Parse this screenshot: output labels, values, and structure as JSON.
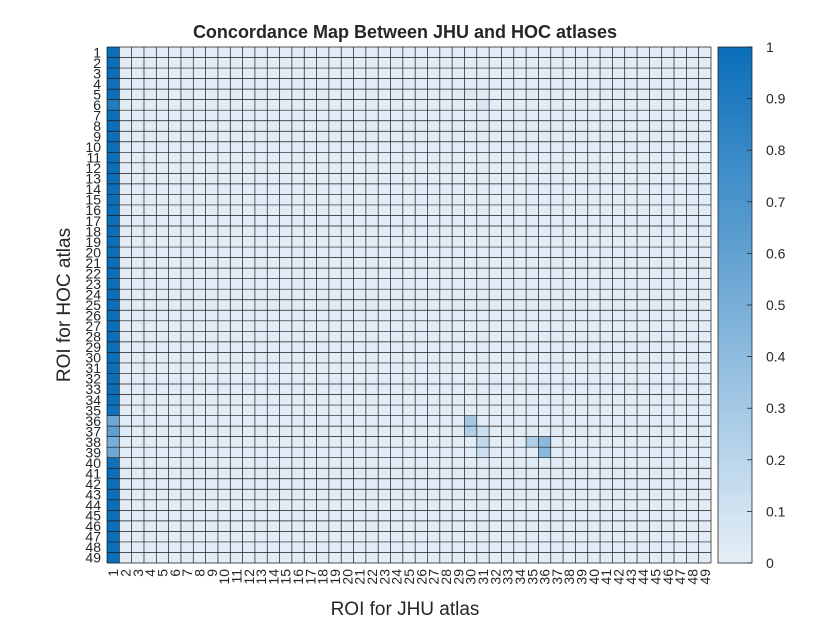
{
  "chart_data": {
    "type": "heatmap",
    "title": "Concordance Map Between JHU and HOC atlases",
    "xlabel": "ROI for JHU atlas",
    "ylabel": "ROI for HOC atlas",
    "x_categories": [
      "1",
      "2",
      "3",
      "4",
      "5",
      "6",
      "7",
      "8",
      "9",
      "10",
      "11",
      "12",
      "13",
      "14",
      "15",
      "16",
      "17",
      "18",
      "19",
      "20",
      "21",
      "22",
      "23",
      "24",
      "25",
      "26",
      "27",
      "28",
      "29",
      "30",
      "31",
      "32",
      "33",
      "34",
      "35",
      "36",
      "37",
      "38",
      "39",
      "40",
      "41",
      "42",
      "43",
      "44",
      "45",
      "46",
      "47",
      "48",
      "49"
    ],
    "y_categories": [
      "1",
      "2",
      "3",
      "4",
      "5",
      "6",
      "7",
      "8",
      "9",
      "10",
      "11",
      "12",
      "13",
      "14",
      "15",
      "16",
      "17",
      "18",
      "19",
      "20",
      "21",
      "22",
      "23",
      "24",
      "25",
      "26",
      "27",
      "28",
      "29",
      "30",
      "31",
      "32",
      "33",
      "34",
      "35",
      "36",
      "37",
      "38",
      "39",
      "40",
      "41",
      "42",
      "43",
      "44",
      "45",
      "46",
      "47",
      "48",
      "49"
    ],
    "default_value": 0.02,
    "column_1_values": [
      1.0,
      1.0,
      1.0,
      0.98,
      1.0,
      0.9,
      1.0,
      1.0,
      1.0,
      1.0,
      1.0,
      1.0,
      1.0,
      1.0,
      1.0,
      1.0,
      1.0,
      1.0,
      1.0,
      1.0,
      1.0,
      1.0,
      1.0,
      1.0,
      1.0,
      1.0,
      1.0,
      1.0,
      1.0,
      1.0,
      1.0,
      1.0,
      1.0,
      1.0,
      0.98,
      0.55,
      0.62,
      0.5,
      0.55,
      0.98,
      1.0,
      1.0,
      1.0,
      1.0,
      1.0,
      1.0,
      1.0,
      1.0,
      1.0
    ],
    "other_cells": [
      {
        "x": "30",
        "y": "5",
        "value": 0.05
      },
      {
        "x": "31",
        "y": "6",
        "value": 0.06
      },
      {
        "x": "30",
        "y": "36",
        "value": 0.3
      },
      {
        "x": "30",
        "y": "37",
        "value": 0.25
      },
      {
        "x": "31",
        "y": "37",
        "value": 0.12
      },
      {
        "x": "31",
        "y": "38",
        "value": 0.18
      },
      {
        "x": "31",
        "y": "39",
        "value": 0.12
      },
      {
        "x": "35",
        "y": "38",
        "value": 0.25
      },
      {
        "x": "36",
        "y": "38",
        "value": 0.42
      },
      {
        "x": "36",
        "y": "39",
        "value": 0.42
      }
    ],
    "colorbar": {
      "min": 0,
      "max": 1,
      "ticks": [
        0,
        0.1,
        0.2,
        0.3,
        0.4,
        0.5,
        0.6,
        0.7,
        0.8,
        0.9,
        1
      ],
      "tick_labels": [
        "0",
        "0.1",
        "0.2",
        "0.3",
        "0.4",
        "0.5",
        "0.6",
        "0.7",
        "0.8",
        "0.9",
        "1"
      ],
      "color_low": "#E6EFF7",
      "color_high": "#0A6EB9"
    },
    "grid_color": "#1a1a1a",
    "grid": true
  }
}
